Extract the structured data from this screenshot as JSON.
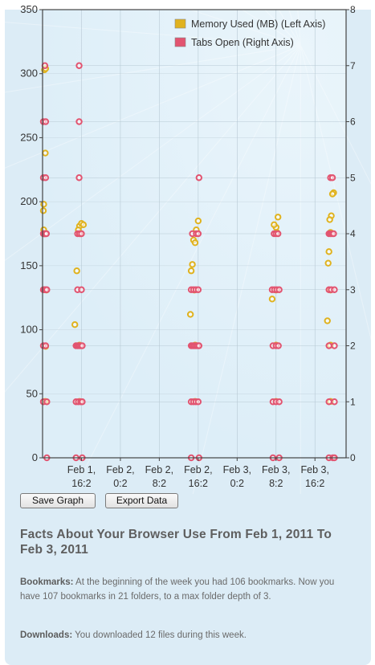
{
  "chart_data": {
    "type": "scatter",
    "legend_position": "top-right",
    "grid": true,
    "x_ticks": [
      {
        "line1": "Feb 1,",
        "line2": "16:2"
      },
      {
        "line1": "Feb 2,",
        "line2": "0:2"
      },
      {
        "line1": "Feb 2,",
        "line2": "8:2"
      },
      {
        "line1": "Feb 2,",
        "line2": "16:2"
      },
      {
        "line1": "Feb 3,",
        "line2": "0:2"
      },
      {
        "line1": "Feb 3,",
        "line2": "8:2"
      },
      {
        "line1": "Feb 3,",
        "line2": "16:2"
      }
    ],
    "y_left": {
      "ticks": [
        "0",
        "50",
        "100",
        "150",
        "200",
        "250",
        "300",
        "350"
      ],
      "ylim": [
        0,
        350
      ]
    },
    "y_right": {
      "ticks": [
        "0",
        "1",
        "2",
        "3",
        "4",
        "5",
        "6",
        "7",
        "8"
      ],
      "ylim": [
        0,
        8
      ]
    },
    "xlim": [
      -0.5,
      7.3
    ],
    "series": [
      {
        "name": "Memory Used (MB) (Left Axis)",
        "axis": "left",
        "color": "#e0b21e",
        "points": [
          {
            "x": -0.45,
            "y": 303
          },
          {
            "x": -0.42,
            "y": 304
          },
          {
            "x": -0.43,
            "y": 238
          },
          {
            "x": -0.47,
            "y": 198
          },
          {
            "x": -0.48,
            "y": 193
          },
          {
            "x": -0.47,
            "y": 178
          },
          {
            "x": -0.45,
            "y": 175
          },
          {
            "x": -0.4,
            "y": 131
          },
          {
            "x": -0.42,
            "y": 87
          },
          {
            "x": -0.43,
            "y": 44
          },
          {
            "x": 0.45,
            "y": 181
          },
          {
            "x": 0.5,
            "y": 183
          },
          {
            "x": 0.55,
            "y": 182
          },
          {
            "x": 0.42,
            "y": 178
          },
          {
            "x": 0.48,
            "y": 175
          },
          {
            "x": 0.38,
            "y": 146
          },
          {
            "x": 0.33,
            "y": 104
          },
          {
            "x": 0.45,
            "y": 88
          },
          {
            "x": 0.45,
            "y": 44
          },
          {
            "x": 3.5,
            "y": 185
          },
          {
            "x": 3.45,
            "y": 178
          },
          {
            "x": 3.38,
            "y": 170
          },
          {
            "x": 3.42,
            "y": 168
          },
          {
            "x": 3.35,
            "y": 151
          },
          {
            "x": 3.32,
            "y": 146
          },
          {
            "x": 3.3,
            "y": 112
          },
          {
            "x": 3.4,
            "y": 131
          },
          {
            "x": 3.42,
            "y": 88
          },
          {
            "x": 3.42,
            "y": 44
          },
          {
            "x": 5.55,
            "y": 188
          },
          {
            "x": 5.5,
            "y": 180
          },
          {
            "x": 5.45,
            "y": 182
          },
          {
            "x": 5.52,
            "y": 176
          },
          {
            "x": 5.4,
            "y": 124
          },
          {
            "x": 5.5,
            "y": 131
          },
          {
            "x": 5.5,
            "y": 88
          },
          {
            "x": 5.5,
            "y": 44
          },
          {
            "x": 6.98,
            "y": 207
          },
          {
            "x": 6.95,
            "y": 206
          },
          {
            "x": 6.92,
            "y": 189
          },
          {
            "x": 6.88,
            "y": 186
          },
          {
            "x": 6.9,
            "y": 176
          },
          {
            "x": 6.86,
            "y": 161
          },
          {
            "x": 6.84,
            "y": 152
          },
          {
            "x": 6.82,
            "y": 107
          },
          {
            "x": 6.9,
            "y": 131
          },
          {
            "x": 6.9,
            "y": 88
          },
          {
            "x": 6.9,
            "y": 44
          }
        ]
      },
      {
        "name": "Tabs Open (Right Axis)",
        "axis": "right",
        "color": "#e25470",
        "points": [
          {
            "x": -0.44,
            "y": 7
          },
          {
            "x": -0.48,
            "y": 6
          },
          {
            "x": -0.42,
            "y": 6
          },
          {
            "x": -0.48,
            "y": 5
          },
          {
            "x": -0.42,
            "y": 5
          },
          {
            "x": -0.48,
            "y": 4
          },
          {
            "x": -0.46,
            "y": 4
          },
          {
            "x": -0.44,
            "y": 4
          },
          {
            "x": -0.42,
            "y": 4
          },
          {
            "x": -0.4,
            "y": 4
          },
          {
            "x": -0.48,
            "y": 3
          },
          {
            "x": -0.45,
            "y": 3
          },
          {
            "x": -0.42,
            "y": 3
          },
          {
            "x": -0.39,
            "y": 3
          },
          {
            "x": -0.48,
            "y": 2
          },
          {
            "x": -0.42,
            "y": 2
          },
          {
            "x": -0.48,
            "y": 1
          },
          {
            "x": -0.39,
            "y": 1
          },
          {
            "x": -0.39,
            "y": 0
          },
          {
            "x": 0.44,
            "y": 7
          },
          {
            "x": 0.44,
            "y": 6
          },
          {
            "x": 0.44,
            "y": 5
          },
          {
            "x": 0.4,
            "y": 4
          },
          {
            "x": 0.45,
            "y": 4
          },
          {
            "x": 0.5,
            "y": 4
          },
          {
            "x": 0.4,
            "y": 3
          },
          {
            "x": 0.5,
            "y": 3
          },
          {
            "x": 0.36,
            "y": 2
          },
          {
            "x": 0.4,
            "y": 2
          },
          {
            "x": 0.44,
            "y": 2
          },
          {
            "x": 0.48,
            "y": 2
          },
          {
            "x": 0.52,
            "y": 2
          },
          {
            "x": 0.36,
            "y": 1
          },
          {
            "x": 0.42,
            "y": 1
          },
          {
            "x": 0.48,
            "y": 1
          },
          {
            "x": 0.52,
            "y": 1
          },
          {
            "x": 0.36,
            "y": 0
          },
          {
            "x": 0.52,
            "y": 0
          },
          {
            "x": 3.52,
            "y": 5
          },
          {
            "x": 3.35,
            "y": 4
          },
          {
            "x": 3.45,
            "y": 4
          },
          {
            "x": 3.5,
            "y": 4
          },
          {
            "x": 3.32,
            "y": 3
          },
          {
            "x": 3.38,
            "y": 3
          },
          {
            "x": 3.44,
            "y": 3
          },
          {
            "x": 3.5,
            "y": 3
          },
          {
            "x": 3.32,
            "y": 2
          },
          {
            "x": 3.36,
            "y": 2
          },
          {
            "x": 3.4,
            "y": 2
          },
          {
            "x": 3.44,
            "y": 2
          },
          {
            "x": 3.48,
            "y": 2
          },
          {
            "x": 3.52,
            "y": 2
          },
          {
            "x": 3.32,
            "y": 1
          },
          {
            "x": 3.38,
            "y": 1
          },
          {
            "x": 3.44,
            "y": 1
          },
          {
            "x": 3.5,
            "y": 1
          },
          {
            "x": 3.32,
            "y": 0
          },
          {
            "x": 3.52,
            "y": 0
          },
          {
            "x": 5.45,
            "y": 4
          },
          {
            "x": 5.5,
            "y": 4
          },
          {
            "x": 5.55,
            "y": 4
          },
          {
            "x": 5.4,
            "y": 3
          },
          {
            "x": 5.46,
            "y": 3
          },
          {
            "x": 5.52,
            "y": 3
          },
          {
            "x": 5.58,
            "y": 3
          },
          {
            "x": 5.42,
            "y": 2
          },
          {
            "x": 5.5,
            "y": 2
          },
          {
            "x": 5.56,
            "y": 2
          },
          {
            "x": 5.42,
            "y": 1
          },
          {
            "x": 5.5,
            "y": 1
          },
          {
            "x": 5.58,
            "y": 1
          },
          {
            "x": 5.42,
            "y": 0
          },
          {
            "x": 5.58,
            "y": 0
          },
          {
            "x": 6.9,
            "y": 5
          },
          {
            "x": 6.95,
            "y": 5
          },
          {
            "x": 6.86,
            "y": 4
          },
          {
            "x": 6.9,
            "y": 4
          },
          {
            "x": 6.94,
            "y": 4
          },
          {
            "x": 6.98,
            "y": 4
          },
          {
            "x": 6.86,
            "y": 3
          },
          {
            "x": 6.92,
            "y": 3
          },
          {
            "x": 7.0,
            "y": 3
          },
          {
            "x": 6.86,
            "y": 2
          },
          {
            "x": 7.0,
            "y": 2
          },
          {
            "x": 6.86,
            "y": 1
          },
          {
            "x": 7.0,
            "y": 1
          },
          {
            "x": 6.86,
            "y": 0
          },
          {
            "x": 6.96,
            "y": 0
          },
          {
            "x": 7.0,
            "y": 0
          }
        ]
      }
    ]
  },
  "buttons": {
    "save": "Save Graph",
    "export": "Export Data"
  },
  "facts": {
    "title": "Facts About Your Browser Use From Feb 1, 2011 To Feb 3, 2011",
    "bookmarks_label": "Bookmarks:",
    "bookmarks_text": "At the beginning of the week you had 106 bookmarks. Now you have 107 bookmarks in 21 folders, to a max folder depth of 3.",
    "downloads_label": "Downloads:",
    "downloads_text": "You downloaded 12 files during this week."
  },
  "colors": {
    "panel_bg": "#dcecf6",
    "plot_bg": "#ddeef8",
    "memory": "#e0b21e",
    "tabs": "#e25470"
  }
}
